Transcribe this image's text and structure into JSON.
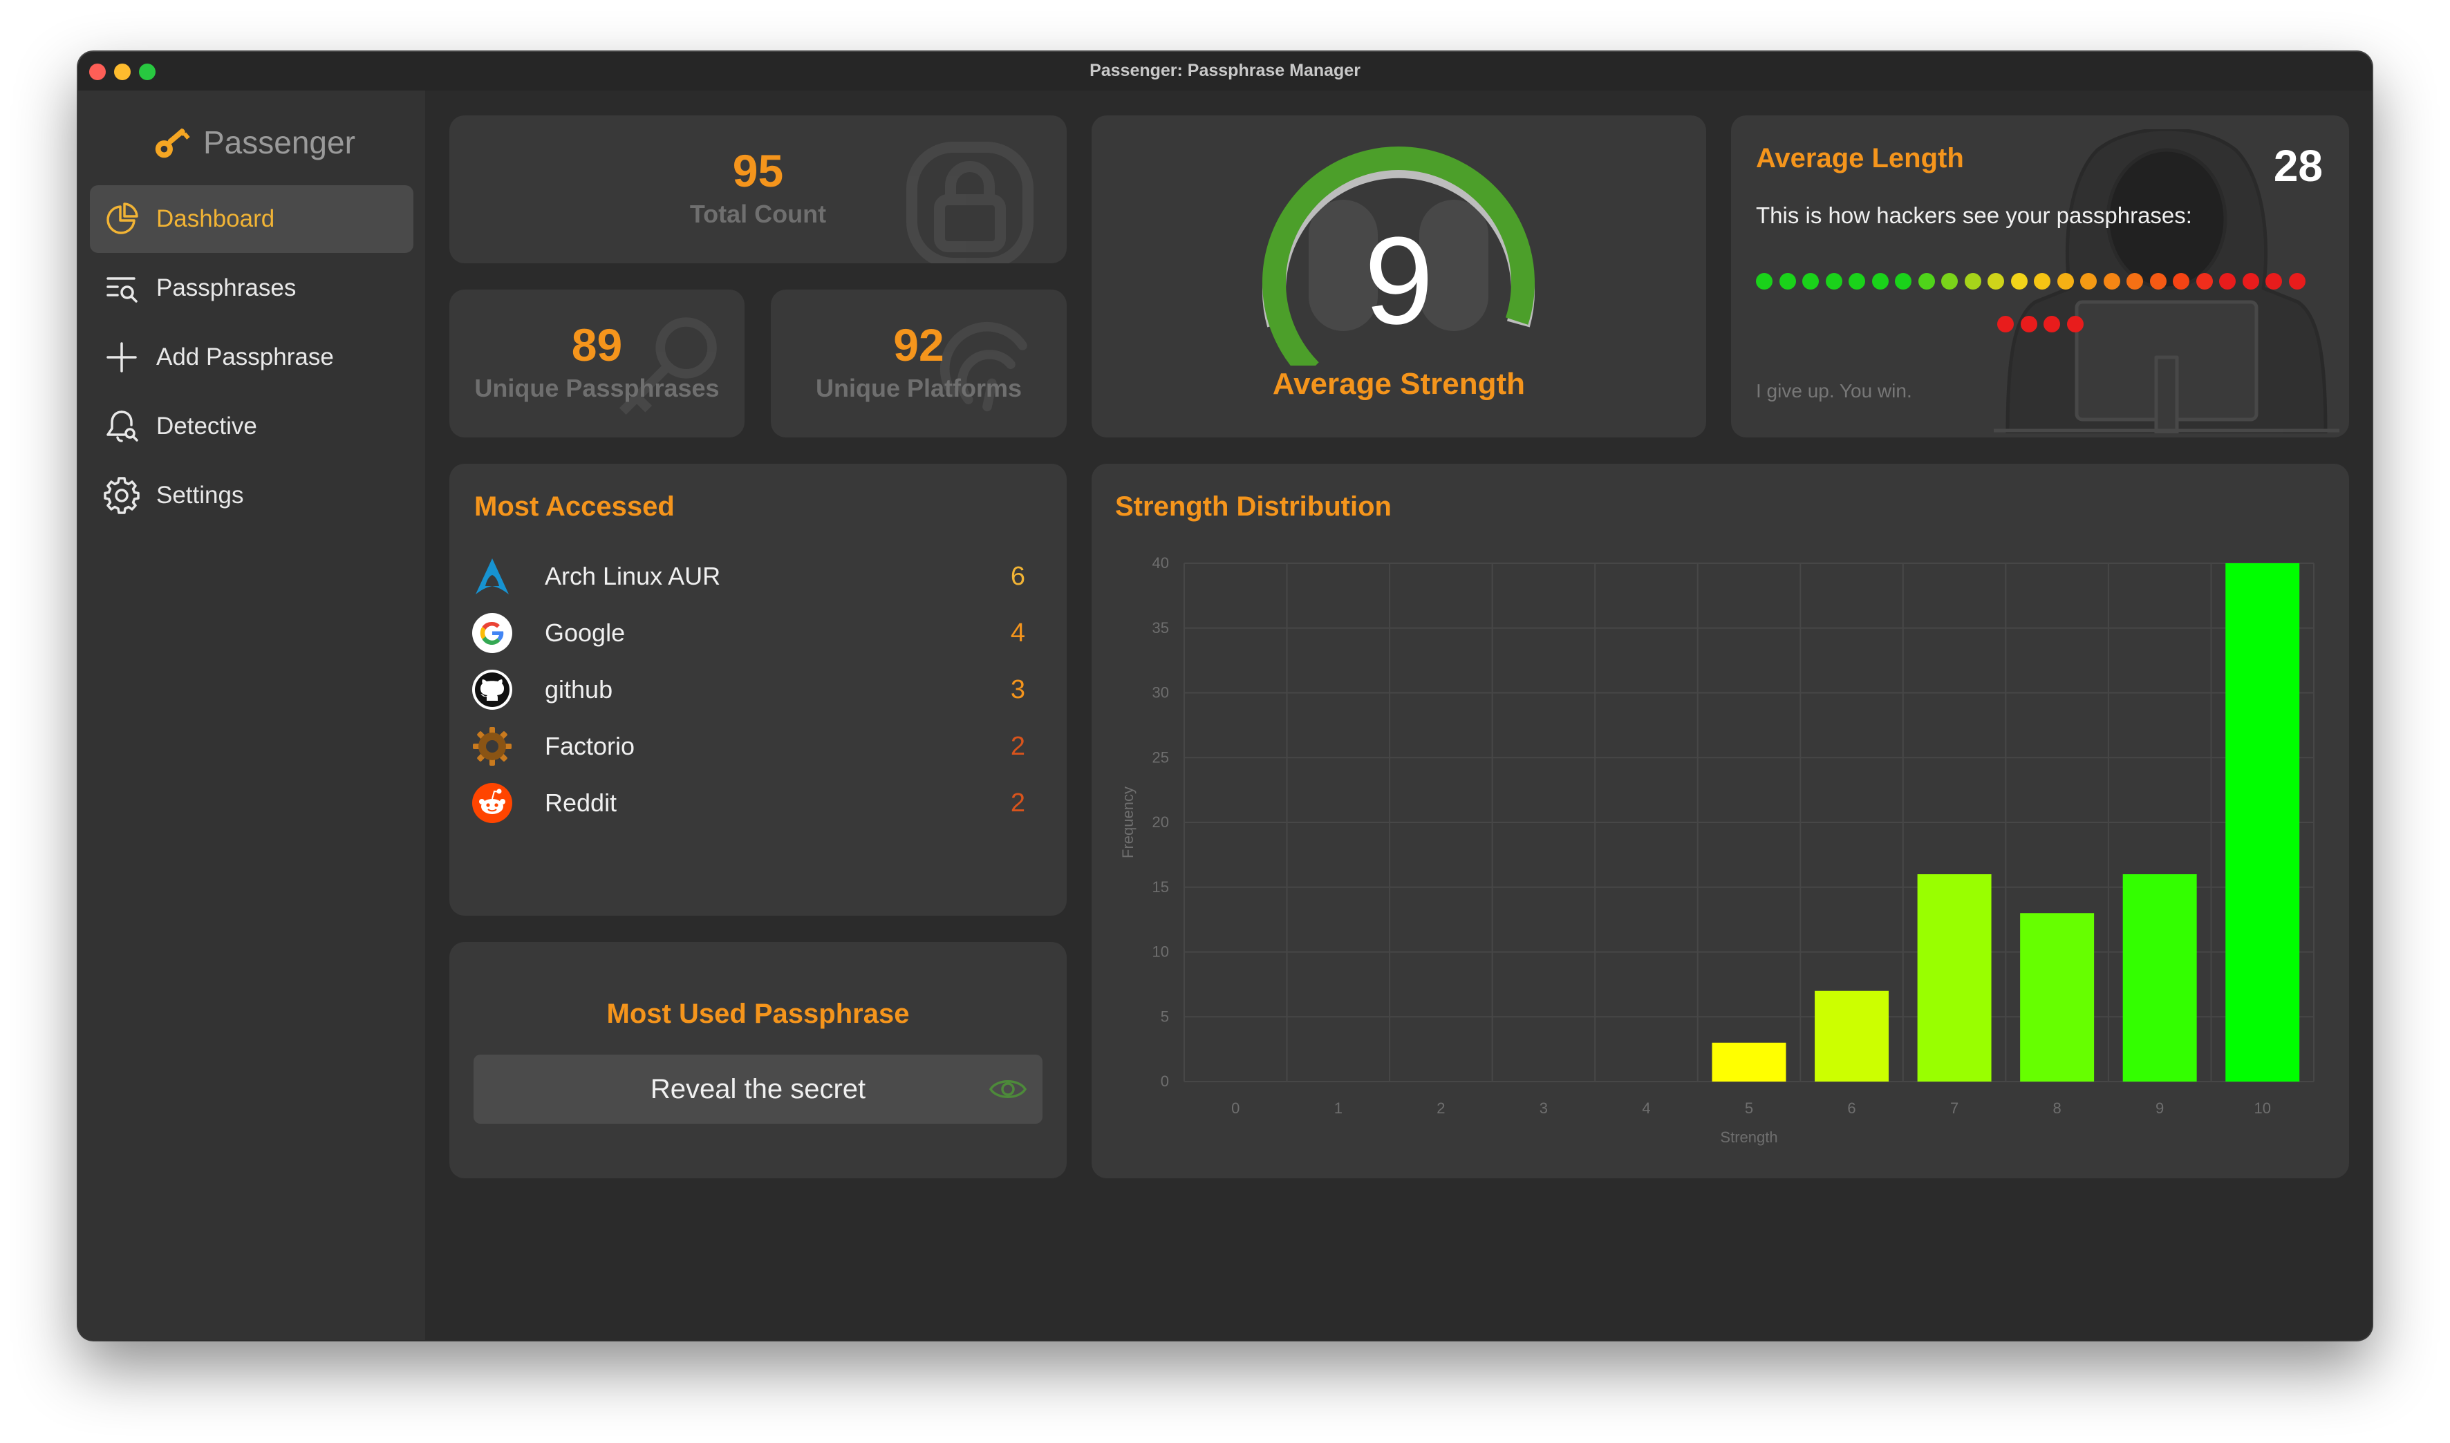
{
  "window": {
    "title": "Passenger: Passphrase Manager"
  },
  "sidebar": {
    "brand": "Passenger",
    "items": [
      {
        "label": "Dashboard",
        "icon": "chart-pie-icon",
        "active": true
      },
      {
        "label": "Passphrases",
        "icon": "list-search-icon"
      },
      {
        "label": "Add Passphrase",
        "icon": "plus-icon"
      },
      {
        "label": "Detective",
        "icon": "bell-search-icon"
      },
      {
        "label": "Settings",
        "icon": "gear-icon"
      }
    ]
  },
  "stats": {
    "total": {
      "value": "95",
      "label": "Total Count"
    },
    "unique_passphrases": {
      "value": "89",
      "label": "Unique Passphrases"
    },
    "unique_platforms": {
      "value": "92",
      "label": "Unique Platforms"
    }
  },
  "strength": {
    "value": "9",
    "label": "Average Strength",
    "gauge_fraction": 0.9,
    "colors": {
      "fill": "#4c9f2a",
      "track": "#bdbdbd"
    }
  },
  "average_length": {
    "title": "Average Length",
    "value": "28",
    "subtitle": "This is how hackers see your passphrases:",
    "footer": "I give up. You win.",
    "dot_colors": [
      "#1ad21a",
      "#1ad21a",
      "#1ad21a",
      "#1ad21a",
      "#1ad21a",
      "#1ad21a",
      "#1ad21a",
      "#4fd41a",
      "#7ad41a",
      "#a6d41a",
      "#cfd41a",
      "#f2d41a",
      "#f5c414",
      "#f5b014",
      "#f59a14",
      "#f58614",
      "#f57014",
      "#f55a14",
      "#f54414",
      "#f02e1c",
      "#e81c1c",
      "#e81c1c",
      "#e81c1c",
      "#e81c1c",
      "#e81c1c",
      "#e81c1c",
      "#e81c1c",
      "#e81c1c"
    ]
  },
  "most_accessed": {
    "title": "Most Accessed",
    "items": [
      {
        "name": "Arch Linux AUR",
        "count": "6",
        "icon": "arch-linux-icon",
        "color": "#f2b435"
      },
      {
        "name": "Google",
        "count": "4",
        "icon": "google-icon",
        "color": "#f5951c"
      },
      {
        "name": "github",
        "count": "3",
        "icon": "github-icon",
        "color": "#f5951c"
      },
      {
        "name": "Factorio",
        "count": "2",
        "icon": "factorio-gear-icon",
        "color": "#d9541c"
      },
      {
        "name": "Reddit",
        "count": "2",
        "icon": "reddit-icon",
        "color": "#d9541c"
      }
    ]
  },
  "most_used": {
    "title": "Most Used Passphrase",
    "button": "Reveal the secret"
  },
  "chart_data": {
    "type": "bar",
    "title": "Strength Distribution",
    "xlabel": "Strength",
    "ylabel": "Frequency",
    "categories": [
      "0",
      "1",
      "2",
      "3",
      "4",
      "5",
      "6",
      "7",
      "8",
      "9",
      "10"
    ],
    "values": [
      0,
      0,
      0,
      0,
      0,
      3,
      7,
      16,
      13,
      16,
      40
    ],
    "colors": [
      "#ff0000",
      "#ff3300",
      "#ff6600",
      "#ff9900",
      "#ffcc00",
      "#ffff00",
      "#ccff00",
      "#99ff00",
      "#66ff00",
      "#33ff00",
      "#00ff00"
    ],
    "yticks": [
      "0",
      "5",
      "10",
      "15",
      "20",
      "25",
      "30",
      "35",
      "40"
    ],
    "ylim": [
      0,
      40
    ],
    "grid": true,
    "legend": false
  }
}
